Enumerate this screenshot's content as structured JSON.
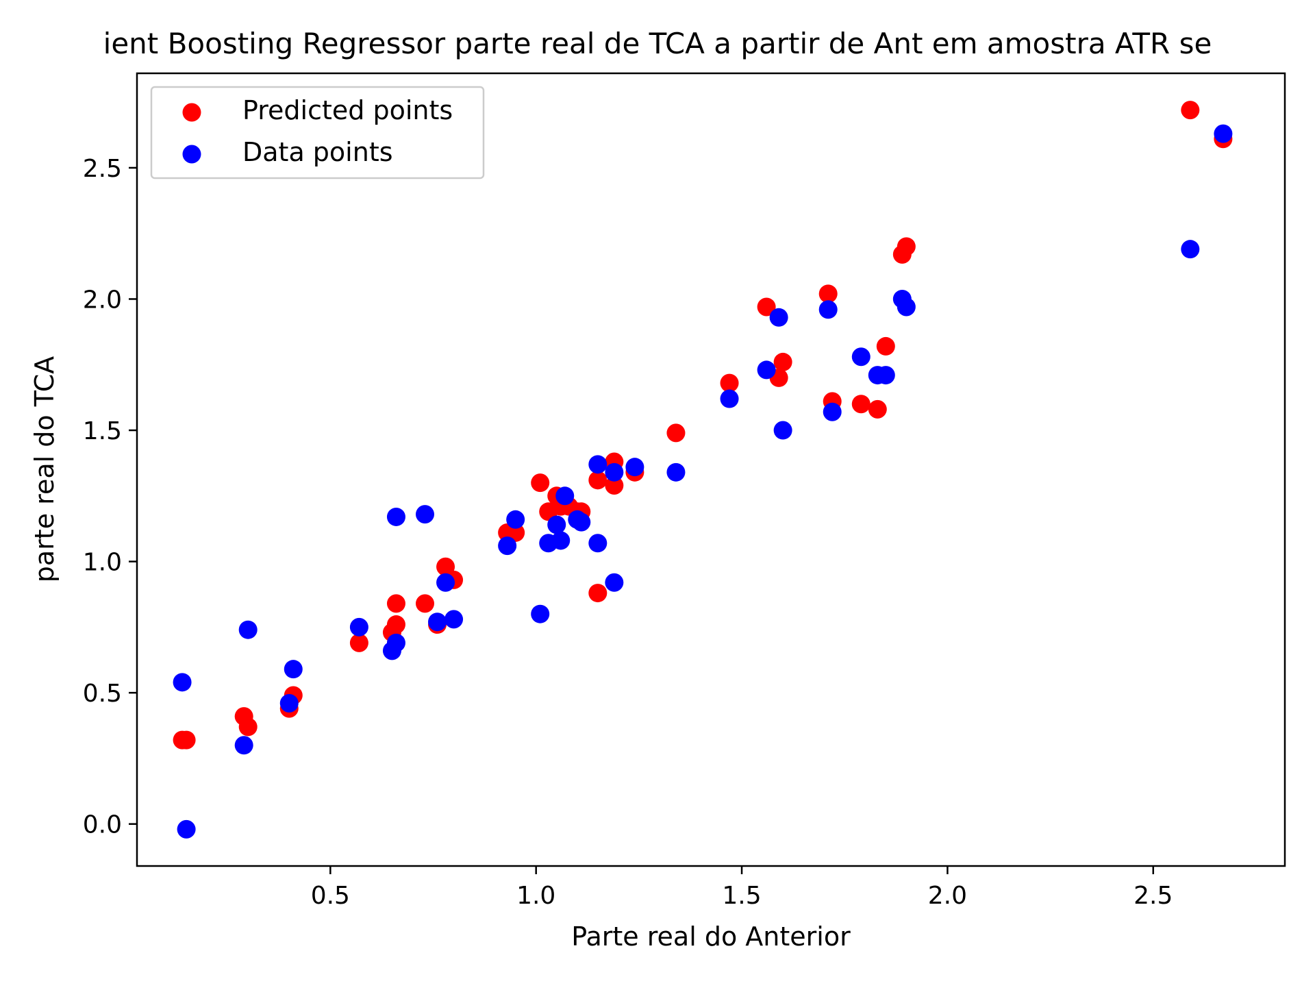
{
  "chart_data": {
    "type": "scatter",
    "title": "ient Boosting Regressor parte real de TCA a partir de Ant em amostra  ATR se",
    "xlabel": "Parte real do Anterior",
    "ylabel": "parte real do TCA",
    "xlim": [
      0.03,
      2.82
    ],
    "ylim": [
      -0.16,
      2.86
    ],
    "xticks": [
      0.5,
      1.0,
      1.5,
      2.0,
      2.5
    ],
    "yticks": [
      0.0,
      0.5,
      1.0,
      1.5,
      2.0,
      2.5
    ],
    "xtick_labels": [
      "0.5",
      "1.0",
      "1.5",
      "2.0",
      "2.5"
    ],
    "ytick_labels": [
      "0.0",
      "0.5",
      "1.0",
      "1.5",
      "2.0",
      "2.5"
    ],
    "grid": false,
    "legend_position": "top-left",
    "series": [
      {
        "name": "Predicted points",
        "color": "#ff0000",
        "points": [
          [
            0.14,
            0.32
          ],
          [
            0.15,
            0.32
          ],
          [
            0.29,
            0.41
          ],
          [
            0.3,
            0.37
          ],
          [
            0.4,
            0.44
          ],
          [
            0.41,
            0.49
          ],
          [
            0.57,
            0.69
          ],
          [
            0.65,
            0.73
          ],
          [
            0.66,
            0.76
          ],
          [
            0.66,
            0.84
          ],
          [
            0.73,
            0.84
          ],
          [
            0.76,
            0.76
          ],
          [
            0.78,
            0.98
          ],
          [
            0.8,
            0.93
          ],
          [
            0.93,
            1.11
          ],
          [
            0.95,
            1.11
          ],
          [
            1.01,
            1.3
          ],
          [
            1.03,
            1.19
          ],
          [
            1.05,
            1.25
          ],
          [
            1.06,
            1.21
          ],
          [
            1.08,
            1.21
          ],
          [
            1.1,
            1.19
          ],
          [
            1.11,
            1.19
          ],
          [
            1.15,
            0.88
          ],
          [
            1.15,
            1.31
          ],
          [
            1.19,
            1.29
          ],
          [
            1.19,
            1.38
          ],
          [
            1.24,
            1.34
          ],
          [
            1.34,
            1.49
          ],
          [
            1.47,
            1.68
          ],
          [
            1.56,
            1.97
          ],
          [
            1.59,
            1.7
          ],
          [
            1.6,
            1.76
          ],
          [
            1.71,
            2.02
          ],
          [
            1.72,
            1.61
          ],
          [
            1.79,
            1.6
          ],
          [
            1.83,
            1.58
          ],
          [
            1.85,
            1.82
          ],
          [
            1.89,
            2.17
          ],
          [
            1.9,
            2.2
          ],
          [
            2.59,
            2.72
          ],
          [
            2.67,
            2.61
          ]
        ]
      },
      {
        "name": "Data points",
        "color": "#0000ff",
        "points": [
          [
            0.14,
            0.54
          ],
          [
            0.15,
            -0.02
          ],
          [
            0.29,
            0.3
          ],
          [
            0.3,
            0.74
          ],
          [
            0.4,
            0.46
          ],
          [
            0.41,
            0.59
          ],
          [
            0.57,
            0.75
          ],
          [
            0.65,
            0.66
          ],
          [
            0.66,
            0.69
          ],
          [
            0.66,
            1.17
          ],
          [
            0.73,
            1.18
          ],
          [
            0.76,
            0.77
          ],
          [
            0.78,
            0.92
          ],
          [
            0.8,
            0.78
          ],
          [
            0.93,
            1.06
          ],
          [
            0.95,
            1.16
          ],
          [
            1.01,
            0.8
          ],
          [
            1.03,
            1.07
          ],
          [
            1.05,
            1.14
          ],
          [
            1.06,
            1.08
          ],
          [
            1.07,
            1.25
          ],
          [
            1.1,
            1.16
          ],
          [
            1.11,
            1.15
          ],
          [
            1.15,
            1.07
          ],
          [
            1.15,
            1.37
          ],
          [
            1.19,
            0.92
          ],
          [
            1.19,
            1.34
          ],
          [
            1.24,
            1.36
          ],
          [
            1.34,
            1.34
          ],
          [
            1.47,
            1.62
          ],
          [
            1.56,
            1.73
          ],
          [
            1.59,
            1.93
          ],
          [
            1.6,
            1.5
          ],
          [
            1.71,
            1.96
          ],
          [
            1.72,
            1.57
          ],
          [
            1.79,
            1.78
          ],
          [
            1.83,
            1.71
          ],
          [
            1.85,
            1.71
          ],
          [
            1.89,
            2.0
          ],
          [
            1.9,
            1.97
          ],
          [
            2.59,
            2.19
          ],
          [
            2.67,
            2.63
          ]
        ]
      }
    ]
  }
}
